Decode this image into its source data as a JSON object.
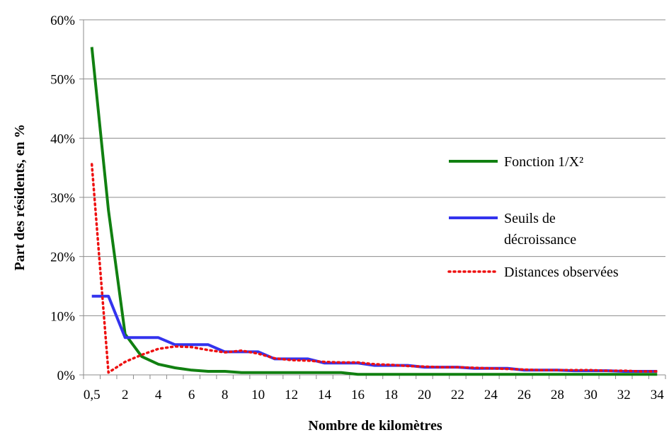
{
  "chart_data": {
    "type": "line",
    "title": "",
    "xlabel": "Nombre de kilomètres",
    "ylabel": "Part des résidents, en %",
    "x": [
      0.5,
      1,
      2,
      3,
      4,
      5,
      6,
      7,
      8,
      9,
      10,
      11,
      12,
      13,
      14,
      15,
      16,
      17,
      18,
      19,
      20,
      21,
      22,
      23,
      24,
      25,
      26,
      27,
      28,
      29,
      30,
      31,
      32,
      33,
      34
    ],
    "x_tick_labels": [
      "0,5",
      "2",
      "4",
      "6",
      "8",
      "10",
      "12",
      "14",
      "16",
      "18",
      "20",
      "22",
      "24",
      "26",
      "28",
      "30",
      "32",
      "34"
    ],
    "ylim": [
      0,
      60
    ],
    "y_tick_labels": [
      "0%",
      "10%",
      "20%",
      "30%",
      "40%",
      "50%",
      "60%"
    ],
    "y_tick_values": [
      0,
      10,
      20,
      30,
      40,
      50,
      60
    ],
    "grid": "horizontal",
    "legend_position": "right",
    "series": [
      {
        "name": "Fonction 1/X²",
        "color": "#118011",
        "style": "solid",
        "values": [
          55.4,
          27.8,
          6.9,
          3.1,
          1.8,
          1.2,
          0.8,
          0.6,
          0.6,
          0.4,
          0.4,
          0.4,
          0.4,
          0.4,
          0.4,
          0.4,
          0.1,
          0.1,
          0.1,
          0.1,
          0.1,
          0.1,
          0.1,
          0.1,
          0.1,
          0.1,
          0.1,
          0.1,
          0.1,
          0.1,
          0.1,
          0.1,
          0.1,
          0.1,
          0.1
        ]
      },
      {
        "name": "Seuils de décroissance",
        "name_lines": [
          "Seuils de",
          "décroissance"
        ],
        "color": "#3333ee",
        "style": "solid",
        "values": [
          13.3,
          13.3,
          6.3,
          6.3,
          6.3,
          5.1,
          5.1,
          5.1,
          3.9,
          3.9,
          3.9,
          2.7,
          2.7,
          2.7,
          2.0,
          2.0,
          2.0,
          1.6,
          1.6,
          1.6,
          1.3,
          1.3,
          1.3,
          1.1,
          1.1,
          1.1,
          0.8,
          0.8,
          0.8,
          0.7,
          0.7,
          0.7,
          0.6,
          0.6,
          0.6
        ]
      },
      {
        "name": "Distances observées",
        "color": "#ee1111",
        "style": "dotted",
        "values": [
          35.6,
          0.4,
          2.2,
          3.4,
          4.4,
          4.8,
          4.7,
          4.2,
          3.8,
          4.1,
          3.6,
          2.8,
          2.5,
          2.4,
          2.2,
          2.1,
          2.1,
          1.8,
          1.7,
          1.5,
          1.4,
          1.3,
          1.3,
          1.2,
          1.1,
          1.0,
          0.9,
          0.8,
          0.8,
          0.8,
          0.8,
          0.7,
          0.7,
          0.6,
          0.6
        ]
      }
    ]
  }
}
